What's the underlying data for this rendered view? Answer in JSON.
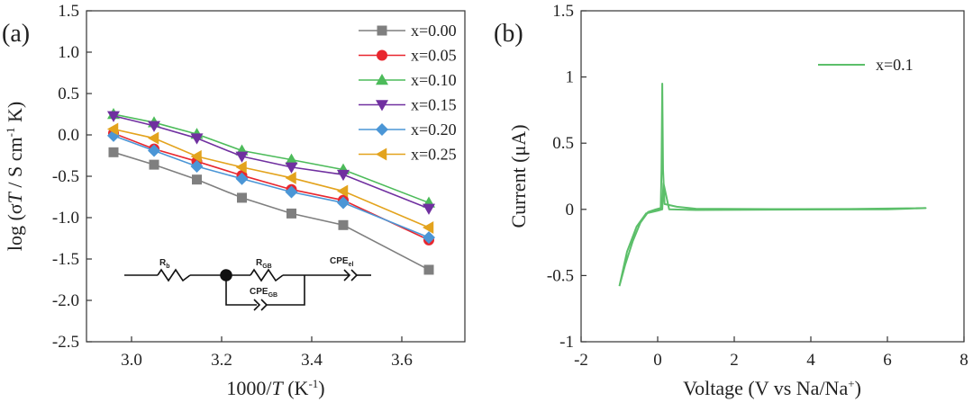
{
  "panels": [
    {
      "label": "(a)",
      "xlabel_pre": "1000/",
      "xlabel_var": "T",
      "xlabel_post": " (K",
      "xlabel_sup": "-1",
      "xlabel_close": ")",
      "ylabel_pre": "log (σ",
      "ylabel_var": "T",
      "ylabel_mid": " / S cm",
      "ylabel_sup": "-1",
      "ylabel_post": " K)"
    },
    {
      "label": "(b)",
      "xlabel_pre": "Voltage (V vs Na/Na",
      "xlabel_sup": "+",
      "xlabel_post": ")",
      "ylabel": "Current (μA)"
    }
  ],
  "circuit": {
    "r_b": "R",
    "r_b_sub": "b",
    "r_gb": "R",
    "r_gb_sub": "GB",
    "cpe_el": "CPE",
    "cpe_el_sub": "el",
    "cpe_gb": "CPE",
    "cpe_gb_sub": "GB"
  },
  "chart_data": [
    {
      "type": "line",
      "panel": "a",
      "xlim": [
        2.9,
        3.74
      ],
      "ylim": [
        -2.5,
        1.5
      ],
      "xticks": [
        3.0,
        3.2,
        3.4,
        3.6
      ],
      "xtick_labels": [
        "3.0",
        "3.2",
        "3.4",
        "3.6"
      ],
      "yticks": [
        -2.5,
        -2.0,
        -1.5,
        -1.0,
        -0.5,
        0.0,
        0.5,
        1.0,
        1.5
      ],
      "ytick_labels": [
        "-2.5",
        "-2.0",
        "-1.5",
        "-1.0",
        "-0.5",
        "0.0",
        "0.5",
        "1.0",
        "1.5"
      ],
      "x": [
        2.96,
        3.05,
        3.145,
        3.245,
        3.355,
        3.47,
        3.66
      ],
      "legend_position": "top-right",
      "series": [
        {
          "name": "x=0.00",
          "marker": "square",
          "color": "#7f7f7f",
          "values": [
            -0.21,
            -0.36,
            -0.54,
            -0.76,
            -0.95,
            -1.09,
            -1.63
          ]
        },
        {
          "name": "x=0.05",
          "marker": "circle",
          "color": "#e8262e",
          "values": [
            0.02,
            -0.17,
            -0.32,
            -0.49,
            -0.66,
            -0.79,
            -1.27
          ]
        },
        {
          "name": "x=0.10",
          "marker": "triangle-up",
          "color": "#4cbb5a",
          "values": [
            0.25,
            0.15,
            0.01,
            -0.19,
            -0.3,
            -0.42,
            -0.82
          ]
        },
        {
          "name": "x=0.15",
          "marker": "triangle-down",
          "color": "#7030a0",
          "values": [
            0.23,
            0.11,
            -0.04,
            -0.26,
            -0.39,
            -0.48,
            -0.89
          ]
        },
        {
          "name": "x=0.20",
          "marker": "diamond",
          "color": "#4b96d6",
          "values": [
            -0.01,
            -0.19,
            -0.38,
            -0.53,
            -0.69,
            -0.82,
            -1.24
          ]
        },
        {
          "name": "x=0.25",
          "marker": "triangle-left",
          "color": "#e3a31d",
          "values": [
            0.07,
            -0.04,
            -0.26,
            -0.39,
            -0.52,
            -0.68,
            -1.12
          ]
        }
      ]
    },
    {
      "type": "line",
      "panel": "b",
      "xlim": [
        -2,
        8
      ],
      "ylim": [
        -1,
        1.5
      ],
      "xticks": [
        -2,
        0,
        2,
        4,
        6,
        8
      ],
      "xtick_labels": [
        "-2",
        "0",
        "2",
        "4",
        "6",
        "8"
      ],
      "yticks": [
        -1,
        -0.5,
        0,
        0.5,
        1,
        1.5
      ],
      "ytick_labels": [
        "-1",
        "-0.5",
        "0",
        "0.5",
        "1",
        "1.5"
      ],
      "legend_position": "top-right",
      "series": [
        {
          "name": "x=0.1",
          "color": "#5cbf6a",
          "points": [
            [
              -1.0,
              -0.58
            ],
            [
              -0.85,
              -0.42
            ],
            [
              -0.65,
              -0.24
            ],
            [
              -0.45,
              -0.1
            ],
            [
              -0.25,
              -0.02
            ],
            [
              -0.05,
              0.0
            ],
            [
              0.08,
              0.01
            ],
            [
              0.1,
              0.3
            ],
            [
              0.12,
              0.95
            ],
            [
              0.14,
              0.3
            ],
            [
              0.18,
              0.04
            ],
            [
              0.5,
              0.02
            ],
            [
              1.0,
              0.005
            ],
            [
              3.0,
              0.002
            ],
            [
              5.0,
              0.003
            ],
            [
              7.0,
              0.01
            ],
            [
              6.0,
              0.0
            ],
            [
              3.0,
              -0.002
            ],
            [
              1.0,
              -0.005
            ],
            [
              0.3,
              0.0
            ],
            [
              0.15,
              0.2
            ],
            [
              0.12,
              0.0
            ],
            [
              0.0,
              -0.01
            ],
            [
              -0.3,
              -0.03
            ],
            [
              -0.55,
              -0.13
            ],
            [
              -0.8,
              -0.32
            ],
            [
              -1.0,
              -0.58
            ]
          ]
        }
      ]
    }
  ]
}
